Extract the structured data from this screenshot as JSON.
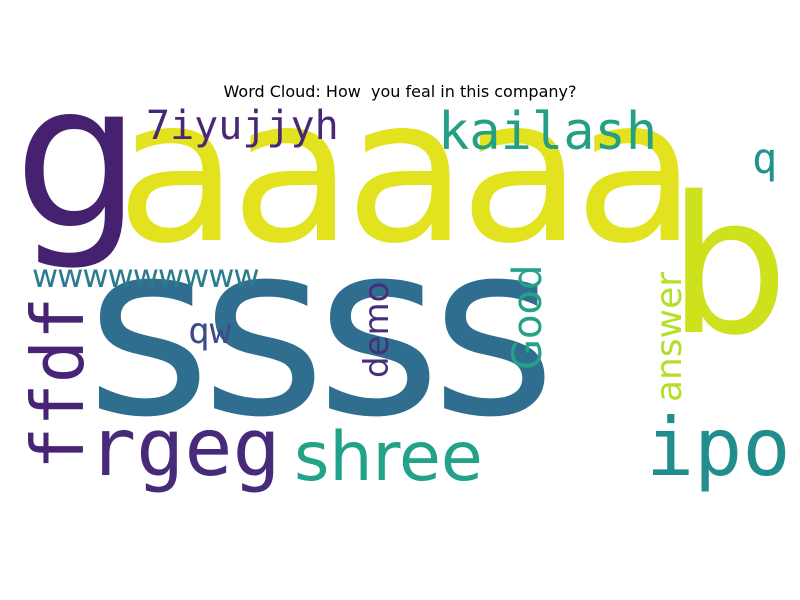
{
  "title": "Word Cloud: How  you feal in this company?",
  "words": {
    "g": {
      "text": "g",
      "color": "#46216f"
    },
    "aaaaa": {
      "text": "aaaaa",
      "color": "#e2e31e"
    },
    "b": {
      "text": "b",
      "color": "#cde11d"
    },
    "ssss": {
      "text": "ssss",
      "color": "#2f6e8f"
    },
    "kailash": {
      "text": "kailash",
      "color": "#23a083"
    },
    "seven": {
      "text": "7iyujjyh",
      "color": "#482777"
    },
    "q": {
      "text": "q",
      "color": "#21918c"
    },
    "wwww": {
      "text": "wwwwwwwww",
      "color": "#2c7b8e"
    },
    "ffdf": {
      "text": "ffdf",
      "color": "#482475"
    },
    "qw": {
      "text": "qw",
      "color": "#3e4c8a"
    },
    "demo": {
      "text": "demo",
      "color": "#472f7d"
    },
    "good": {
      "text": "Good",
      "color": "#25a18a"
    },
    "answer": {
      "text": "answer",
      "color": "#b5de2b"
    },
    "rgeg": {
      "text": "rgeg",
      "color": "#472a7a"
    },
    "shree": {
      "text": "shree",
      "color": "#22a288"
    },
    "ipo": {
      "text": "ipo",
      "color": "#228d8d"
    }
  }
}
